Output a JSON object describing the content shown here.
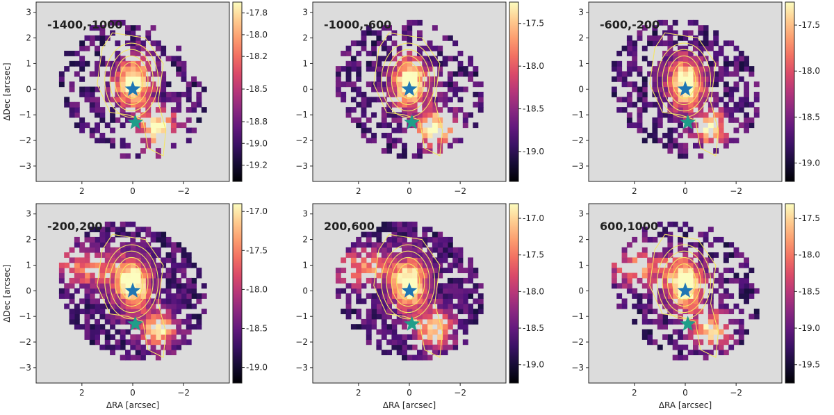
{
  "chart_data": {
    "type": "heatmap",
    "colormap": "magma",
    "map_background": "#dcdcdc",
    "contour_color": "#f5e663",
    "xlabel": "ΔRA [arcsec]",
    "ylabel": "ΔDec [arcsec]",
    "xlim": [
      3.8,
      -3.8
    ],
    "ylim": [
      -3.6,
      3.4
    ],
    "xticks": [
      2,
      0,
      -2
    ],
    "yticks": [
      3,
      2,
      1,
      0,
      -1,
      -2,
      -3
    ],
    "xtick_labels": [
      "2",
      "0",
      "−2"
    ],
    "ytick_labels": [
      "3",
      "2",
      "1",
      "0",
      "−1",
      "−2",
      "−3"
    ],
    "markers": [
      {
        "name": "blue-star",
        "x": 0.0,
        "y": 0.0,
        "color": "#1f77b4"
      },
      {
        "name": "green-star",
        "x": -0.1,
        "y": -1.3,
        "color": "#1f9e89"
      }
    ],
    "panels": [
      {
        "label": "-1400,-1000",
        "clim": [
          -19.35,
          -17.7
        ],
        "colorbar_ticks": [
          -17.8,
          -18.0,
          -18.2,
          -18.5,
          -18.8,
          -19.0,
          -19.2
        ],
        "colorbar_tick_labels": [
          "-17.8",
          "-18.0",
          "-18.2",
          "-18.5",
          "-18.8",
          "-19.0",
          "-19.2"
        ]
      },
      {
        "label": "-1000,-600",
        "clim": [
          -19.35,
          -17.25
        ],
        "colorbar_ticks": [
          -17.5,
          -18.0,
          -18.5,
          -19.0
        ],
        "colorbar_tick_labels": [
          "-17.5",
          "-18.0",
          "-18.5",
          "-19.0"
        ]
      },
      {
        "label": "-600,-200",
        "clim": [
          -19.2,
          -17.25
        ],
        "colorbar_ticks": [
          -17.5,
          -18.0,
          -18.5,
          -19.0
        ],
        "colorbar_tick_labels": [
          "-17.5",
          "-18.0",
          "-18.5",
          "-19.0"
        ]
      },
      {
        "label": "-200,200",
        "clim": [
          -19.2,
          -16.9
        ],
        "colorbar_ticks": [
          -17.0,
          -17.5,
          -18.0,
          -18.5,
          -19.0
        ],
        "colorbar_tick_labels": [
          "-17.0",
          "-17.5",
          "-18.0",
          "-18.5",
          "-19.0"
        ]
      },
      {
        "label": "200,600",
        "clim": [
          -19.25,
          -16.8
        ],
        "colorbar_ticks": [
          -17.0,
          -17.5,
          -18.0,
          -18.5,
          -19.0
        ],
        "colorbar_tick_labels": [
          "-17.0",
          "-17.5",
          "-18.0",
          "-18.5",
          "-19.0"
        ]
      },
      {
        "label": "600,1000",
        "clim": [
          -19.75,
          -17.3
        ],
        "colorbar_ticks": [
          -17.5,
          -18.0,
          -18.5,
          -19.0,
          -19.5
        ],
        "colorbar_tick_labels": [
          "-17.5",
          "-18.0",
          "-18.5",
          "-19.0",
          "-19.5"
        ]
      }
    ]
  }
}
